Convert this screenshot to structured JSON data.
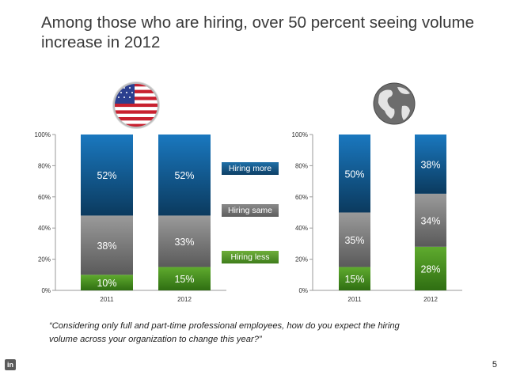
{
  "header": {
    "title": "Among those who are hiring, over 50 percent seeing volume increase in 2012"
  },
  "legend": {
    "more": "Hiring more",
    "same": "Hiring same",
    "less": "Hiring less"
  },
  "colors": {
    "more": "#1565a3",
    "same": "#747474",
    "less": "#4f9a2a",
    "axis": "#888888"
  },
  "footer": {
    "quote": "“Considering only full and part-time professional employees, how do you expect the hiring volume across your organization to change this year?”",
    "page_number": "5",
    "logo": "in"
  },
  "chart_data": [
    {
      "type": "bar",
      "stacked": true,
      "region": "US",
      "flag_icon": "us-flag-icon",
      "categories": [
        "2011",
        "2012"
      ],
      "series": [
        {
          "name": "Hiring less",
          "values": [
            10,
            15
          ]
        },
        {
          "name": "Hiring same",
          "values": [
            38,
            33
          ]
        },
        {
          "name": "Hiring more",
          "values": [
            52,
            52
          ]
        }
      ],
      "y_ticks": [
        "0%",
        "20%",
        "40%",
        "60%",
        "80%",
        "100%"
      ],
      "ylim": [
        0,
        100
      ]
    },
    {
      "type": "bar",
      "stacked": true,
      "region": "Global",
      "flag_icon": "globe-icon",
      "categories": [
        "2011",
        "2012"
      ],
      "series": [
        {
          "name": "Hiring less",
          "values": [
            15,
            28
          ]
        },
        {
          "name": "Hiring same",
          "values": [
            35,
            34
          ]
        },
        {
          "name": "Hiring more",
          "values": [
            50,
            38
          ]
        }
      ],
      "y_ticks": [
        "0%",
        "20%",
        "40%",
        "60%",
        "80%",
        "100%"
      ],
      "ylim": [
        0,
        100
      ]
    }
  ]
}
